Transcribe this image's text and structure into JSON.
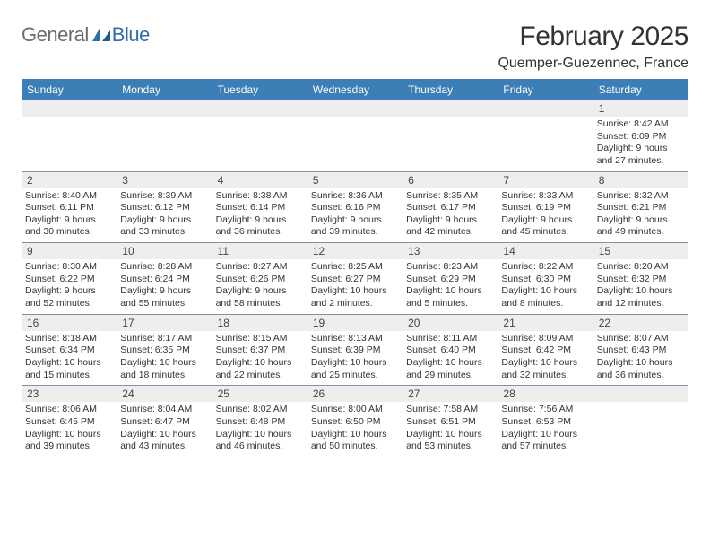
{
  "logo": {
    "text1": "General",
    "text2": "Blue"
  },
  "title": "February 2025",
  "location": "Quemper-Guezennec, France",
  "colors": {
    "header_bg": "#3b7fb6",
    "header_text": "#ffffff",
    "daynum_bg": "#eeeeee",
    "rule": "#7f93a6",
    "logo_gray": "#6b6b6b",
    "logo_blue": "#2f6fa8"
  },
  "weekdays": [
    "Sunday",
    "Monday",
    "Tuesday",
    "Wednesday",
    "Thursday",
    "Friday",
    "Saturday"
  ],
  "weeks": [
    [
      null,
      null,
      null,
      null,
      null,
      null,
      {
        "n": "1",
        "sr": "Sunrise: 8:42 AM",
        "ss": "Sunset: 6:09 PM",
        "d1": "Daylight: 9 hours",
        "d2": "and 27 minutes."
      }
    ],
    [
      {
        "n": "2",
        "sr": "Sunrise: 8:40 AM",
        "ss": "Sunset: 6:11 PM",
        "d1": "Daylight: 9 hours",
        "d2": "and 30 minutes."
      },
      {
        "n": "3",
        "sr": "Sunrise: 8:39 AM",
        "ss": "Sunset: 6:12 PM",
        "d1": "Daylight: 9 hours",
        "d2": "and 33 minutes."
      },
      {
        "n": "4",
        "sr": "Sunrise: 8:38 AM",
        "ss": "Sunset: 6:14 PM",
        "d1": "Daylight: 9 hours",
        "d2": "and 36 minutes."
      },
      {
        "n": "5",
        "sr": "Sunrise: 8:36 AM",
        "ss": "Sunset: 6:16 PM",
        "d1": "Daylight: 9 hours",
        "d2": "and 39 minutes."
      },
      {
        "n": "6",
        "sr": "Sunrise: 8:35 AM",
        "ss": "Sunset: 6:17 PM",
        "d1": "Daylight: 9 hours",
        "d2": "and 42 minutes."
      },
      {
        "n": "7",
        "sr": "Sunrise: 8:33 AM",
        "ss": "Sunset: 6:19 PM",
        "d1": "Daylight: 9 hours",
        "d2": "and 45 minutes."
      },
      {
        "n": "8",
        "sr": "Sunrise: 8:32 AM",
        "ss": "Sunset: 6:21 PM",
        "d1": "Daylight: 9 hours",
        "d2": "and 49 minutes."
      }
    ],
    [
      {
        "n": "9",
        "sr": "Sunrise: 8:30 AM",
        "ss": "Sunset: 6:22 PM",
        "d1": "Daylight: 9 hours",
        "d2": "and 52 minutes."
      },
      {
        "n": "10",
        "sr": "Sunrise: 8:28 AM",
        "ss": "Sunset: 6:24 PM",
        "d1": "Daylight: 9 hours",
        "d2": "and 55 minutes."
      },
      {
        "n": "11",
        "sr": "Sunrise: 8:27 AM",
        "ss": "Sunset: 6:26 PM",
        "d1": "Daylight: 9 hours",
        "d2": "and 58 minutes."
      },
      {
        "n": "12",
        "sr": "Sunrise: 8:25 AM",
        "ss": "Sunset: 6:27 PM",
        "d1": "Daylight: 10 hours",
        "d2": "and 2 minutes."
      },
      {
        "n": "13",
        "sr": "Sunrise: 8:23 AM",
        "ss": "Sunset: 6:29 PM",
        "d1": "Daylight: 10 hours",
        "d2": "and 5 minutes."
      },
      {
        "n": "14",
        "sr": "Sunrise: 8:22 AM",
        "ss": "Sunset: 6:30 PM",
        "d1": "Daylight: 10 hours",
        "d2": "and 8 minutes."
      },
      {
        "n": "15",
        "sr": "Sunrise: 8:20 AM",
        "ss": "Sunset: 6:32 PM",
        "d1": "Daylight: 10 hours",
        "d2": "and 12 minutes."
      }
    ],
    [
      {
        "n": "16",
        "sr": "Sunrise: 8:18 AM",
        "ss": "Sunset: 6:34 PM",
        "d1": "Daylight: 10 hours",
        "d2": "and 15 minutes."
      },
      {
        "n": "17",
        "sr": "Sunrise: 8:17 AM",
        "ss": "Sunset: 6:35 PM",
        "d1": "Daylight: 10 hours",
        "d2": "and 18 minutes."
      },
      {
        "n": "18",
        "sr": "Sunrise: 8:15 AM",
        "ss": "Sunset: 6:37 PM",
        "d1": "Daylight: 10 hours",
        "d2": "and 22 minutes."
      },
      {
        "n": "19",
        "sr": "Sunrise: 8:13 AM",
        "ss": "Sunset: 6:39 PM",
        "d1": "Daylight: 10 hours",
        "d2": "and 25 minutes."
      },
      {
        "n": "20",
        "sr": "Sunrise: 8:11 AM",
        "ss": "Sunset: 6:40 PM",
        "d1": "Daylight: 10 hours",
        "d2": "and 29 minutes."
      },
      {
        "n": "21",
        "sr": "Sunrise: 8:09 AM",
        "ss": "Sunset: 6:42 PM",
        "d1": "Daylight: 10 hours",
        "d2": "and 32 minutes."
      },
      {
        "n": "22",
        "sr": "Sunrise: 8:07 AM",
        "ss": "Sunset: 6:43 PM",
        "d1": "Daylight: 10 hours",
        "d2": "and 36 minutes."
      }
    ],
    [
      {
        "n": "23",
        "sr": "Sunrise: 8:06 AM",
        "ss": "Sunset: 6:45 PM",
        "d1": "Daylight: 10 hours",
        "d2": "and 39 minutes."
      },
      {
        "n": "24",
        "sr": "Sunrise: 8:04 AM",
        "ss": "Sunset: 6:47 PM",
        "d1": "Daylight: 10 hours",
        "d2": "and 43 minutes."
      },
      {
        "n": "25",
        "sr": "Sunrise: 8:02 AM",
        "ss": "Sunset: 6:48 PM",
        "d1": "Daylight: 10 hours",
        "d2": "and 46 minutes."
      },
      {
        "n": "26",
        "sr": "Sunrise: 8:00 AM",
        "ss": "Sunset: 6:50 PM",
        "d1": "Daylight: 10 hours",
        "d2": "and 50 minutes."
      },
      {
        "n": "27",
        "sr": "Sunrise: 7:58 AM",
        "ss": "Sunset: 6:51 PM",
        "d1": "Daylight: 10 hours",
        "d2": "and 53 minutes."
      },
      {
        "n": "28",
        "sr": "Sunrise: 7:56 AM",
        "ss": "Sunset: 6:53 PM",
        "d1": "Daylight: 10 hours",
        "d2": "and 57 minutes."
      },
      null
    ]
  ]
}
